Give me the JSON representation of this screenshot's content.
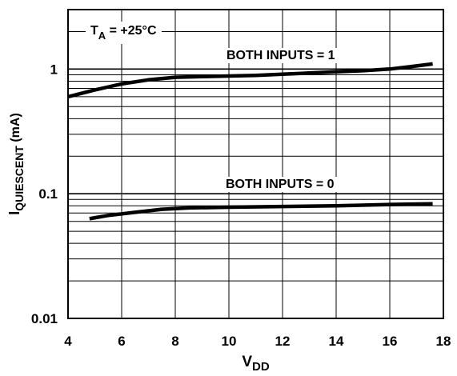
{
  "chart_data": {
    "type": "line",
    "title": "",
    "xlabel": {
      "main": "V",
      "sub": "DD"
    },
    "ylabel": {
      "main": "I",
      "sub": "QUIESCENT",
      "suffix": " (mA)"
    },
    "x_scale": "linear",
    "y_scale": "log",
    "xlim": [
      4,
      18
    ],
    "ylim": [
      0.01,
      3
    ],
    "x_ticks": [
      4,
      6,
      8,
      10,
      12,
      14,
      16,
      18
    ],
    "x_tick_labels": [
      "4",
      "6",
      "8",
      "10",
      "12",
      "14",
      "16",
      "18"
    ],
    "y_ticks": [
      0.01,
      0.1,
      1
    ],
    "y_tick_labels": [
      "0.01",
      "0.1",
      "1"
    ],
    "grid": true,
    "legend": "none",
    "condition": {
      "main": "T",
      "sub": "A",
      "rest": " = +25°C"
    },
    "series": [
      {
        "name": "BOTH INPUTS = 1",
        "x": [
          4,
          5,
          6,
          7,
          8,
          9,
          10,
          11,
          12,
          13,
          14,
          15,
          16,
          17,
          17.6
        ],
        "y": [
          0.6,
          0.68,
          0.76,
          0.82,
          0.86,
          0.87,
          0.88,
          0.89,
          0.91,
          0.93,
          0.95,
          0.97,
          1.0,
          1.06,
          1.1
        ]
      },
      {
        "name": "BOTH INPUTS = 0",
        "x": [
          4.8,
          5.5,
          6.5,
          7.5,
          8.5,
          10,
          12,
          14,
          16,
          17.6
        ],
        "y": [
          0.063,
          0.067,
          0.071,
          0.075,
          0.077,
          0.078,
          0.079,
          0.08,
          0.082,
          0.083
        ]
      }
    ],
    "annotations": [
      "BOTH INPUTS = 1",
      "BOTH INPUTS = 0"
    ]
  }
}
